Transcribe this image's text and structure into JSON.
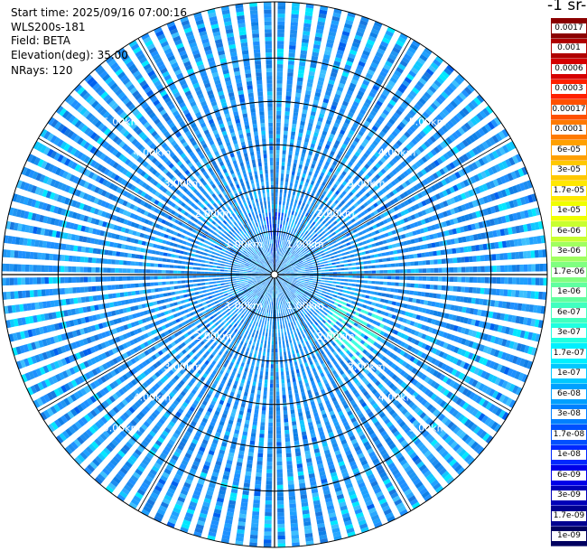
{
  "info": {
    "start_time": "Start time: 2025/09/16 07:00:16",
    "instrument": "WLS200s-181",
    "field": "Field: BETA",
    "elevation": "Elevation(deg): 35.00",
    "nrays": "NRays: 120"
  },
  "colorbar": {
    "title": "-1 sr-",
    "labels": [
      "0.0017",
      "0.001",
      "0.0006",
      "0.0003",
      "0.00017",
      "0.0001",
      "6e-05",
      "3e-05",
      "1.7e-05",
      "1e-05",
      "6e-06",
      "3e-06",
      "1.7e-06",
      "1e-06",
      "6e-07",
      "3e-07",
      "1.7e-07",
      "1e-07",
      "6e-08",
      "3e-08",
      "1.7e-08",
      "1e-08",
      "6e-09",
      "3e-09",
      "1.7e-09",
      "1e-09"
    ],
    "colors": [
      "#8b0000",
      "#b00000",
      "#d60000",
      "#ff2000",
      "#ff5000",
      "#ff7a00",
      "#ffa000",
      "#ffc800",
      "#ffe800",
      "#f0ff00",
      "#c8ff30",
      "#a0ff60",
      "#80ff80",
      "#60ffa0",
      "#40ffc0",
      "#20ffe0",
      "#00f0ff",
      "#00c8ff",
      "#00a0ff",
      "#0080ff",
      "#0050ff",
      "#0028ff",
      "#0000e8",
      "#0000b8",
      "#000090",
      "#000060"
    ]
  },
  "chart_data": {
    "type": "heatmap",
    "projection": "polar PPI",
    "nrays": 120,
    "range_rings_km": [
      1,
      2,
      3,
      4,
      5
    ],
    "range_ring_labels": [
      "1.00km",
      "2.00km",
      "3.00km",
      "4.00km",
      "5.00km"
    ],
    "max_range_km": 6.3,
    "dominant_value_range": [
      "3e-08",
      "1.7e-07"
    ],
    "colorscale": "log"
  }
}
